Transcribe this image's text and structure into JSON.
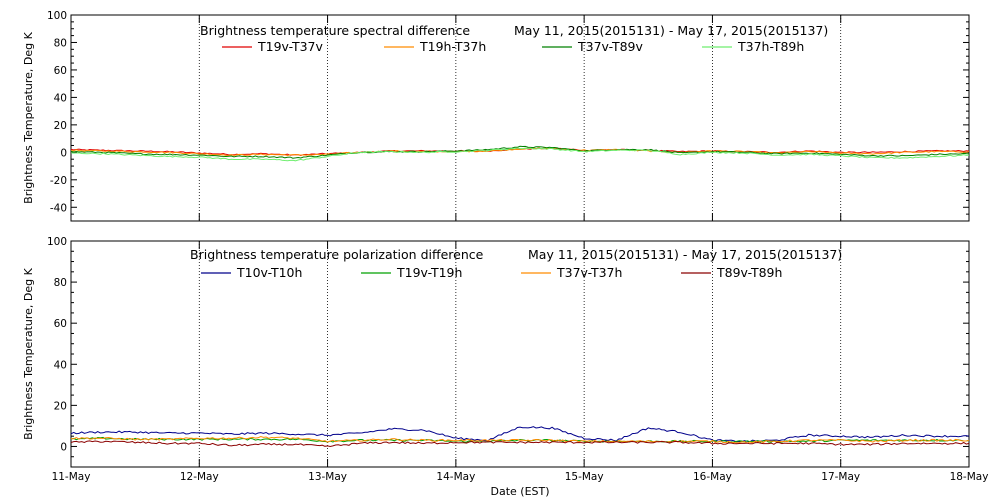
{
  "figure": {
    "xlabel": "Date (EST)",
    "x_tick_labels": [
      "11-May",
      "12-May",
      "13-May",
      "14-May",
      "15-May",
      "16-May",
      "17-May",
      "18-May"
    ]
  },
  "chart_data": [
    {
      "type": "line",
      "title": "Brightness temperature spectral difference",
      "date_range": "May 11, 2015(2015131) - May 17, 2015(2015137)",
      "ylabel": "Brightness Temperature, Deg K",
      "xlim": [
        "11-May",
        "18-May"
      ],
      "ylim": [
        -50,
        100
      ],
      "y_ticks": [
        -40,
        -20,
        0,
        20,
        40,
        60,
        80,
        100
      ],
      "grid": "vertical dotted lines at each day",
      "legend_placement": "top",
      "x_days": [
        0,
        0.25,
        0.5,
        0.75,
        1,
        1.25,
        1.5,
        1.75,
        2,
        2.25,
        2.5,
        2.75,
        3,
        3.25,
        3.5,
        3.75,
        4,
        4.25,
        4.5,
        4.75,
        5,
        5.25,
        5.5,
        5.75,
        6,
        6.25,
        6.5,
        6.75,
        7
      ],
      "series": [
        {
          "name": "T19v-T37v",
          "color": "#e00000",
          "values": [
            2,
            1.5,
            1,
            0.5,
            -0.5,
            -1.5,
            -1,
            -2,
            -1,
            0,
            1,
            1,
            1,
            1,
            2.5,
            3,
            1.5,
            2,
            1.5,
            0.5,
            1,
            0.5,
            0,
            1,
            0,
            0,
            0.5,
            1,
            1
          ]
        },
        {
          "name": "T19h-T37h",
          "color": "#ff8c00",
          "values": [
            1.5,
            1,
            0.5,
            0,
            -1,
            -2,
            -1.5,
            -2,
            -1.5,
            0,
            1,
            0.5,
            0.5,
            1,
            2.5,
            3,
            1.5,
            2,
            1,
            0,
            1,
            0.5,
            -0.5,
            0.5,
            -0.5,
            -1,
            0,
            0.5,
            0.5
          ]
        },
        {
          "name": "T37v-T89v",
          "color": "#008000",
          "values": [
            0.5,
            0,
            -1,
            -1.5,
            -2,
            -3,
            -3,
            -4,
            -2,
            0,
            0.5,
            0.5,
            1,
            2,
            4,
            3.5,
            1,
            2,
            2,
            -0.5,
            0.5,
            0,
            -1,
            -0.5,
            -1.5,
            -2.5,
            -2.5,
            -1.5,
            -1
          ]
        },
        {
          "name": "T37h-T89h",
          "color": "#6fee6f",
          "values": [
            -0.5,
            -1,
            -2,
            -3,
            -3.5,
            -5,
            -5,
            -6,
            -3,
            0,
            0.5,
            0,
            0.5,
            1.5,
            3,
            2.5,
            0.5,
            1.5,
            1.5,
            -1.5,
            0,
            -0.5,
            -2,
            -1.5,
            -2.5,
            -4,
            -4,
            -3,
            -2
          ]
        }
      ]
    },
    {
      "type": "line",
      "title": "Brightness temperature polarization difference",
      "date_range": "May 11, 2015(2015131) - May 17, 2015(2015137)",
      "ylabel": "Brightness Temperature, Deg K",
      "xlim": [
        "11-May",
        "18-May"
      ],
      "ylim": [
        -10,
        100
      ],
      "y_ticks": [
        0,
        20,
        40,
        60,
        80,
        100
      ],
      "grid": "vertical dotted lines at each day",
      "legend_placement": "top",
      "x_days": [
        0,
        0.25,
        0.5,
        0.75,
        1,
        1.25,
        1.5,
        1.75,
        2,
        2.25,
        2.5,
        2.75,
        3,
        3.25,
        3.5,
        3.75,
        4,
        4.25,
        4.5,
        4.75,
        5,
        5.25,
        5.5,
        5.75,
        6,
        6.25,
        6.5,
        6.75,
        7
      ],
      "series": [
        {
          "name": "T10v-T10h",
          "color": "#00008b",
          "values": [
            6.5,
            7,
            7,
            6.5,
            6.5,
            6,
            6.5,
            6,
            5.5,
            6.5,
            8.5,
            8,
            4,
            3,
            9.5,
            9,
            4,
            3,
            9,
            7,
            3,
            2.5,
            3,
            5.5,
            5,
            4.5,
            5.5,
            5,
            5
          ]
        },
        {
          "name": "T19v-T19h",
          "color": "#00a000",
          "values": [
            3.5,
            4,
            3.5,
            3.5,
            3.5,
            3.5,
            3.5,
            3.5,
            2.5,
            3,
            3,
            3,
            2.5,
            2.5,
            3,
            3,
            2.5,
            2.5,
            2.5,
            2.5,
            2.5,
            2.5,
            2.5,
            2.5,
            3,
            3,
            3,
            3,
            3
          ]
        },
        {
          "name": "T37v-T37h",
          "color": "#ff8c00",
          "values": [
            4,
            4,
            3.5,
            3.5,
            4,
            4,
            4.5,
            4,
            2.5,
            3,
            3.5,
            3,
            3,
            3,
            3,
            3,
            2.5,
            2.5,
            2.5,
            2.5,
            2.5,
            2,
            2.5,
            3,
            3,
            2.5,
            3,
            3,
            3
          ]
        },
        {
          "name": "T89v-T89h",
          "color": "#8b0000",
          "values": [
            2,
            2.5,
            2,
            1.5,
            1.5,
            0.5,
            1,
            1,
            0,
            1.5,
            2,
            1.5,
            2,
            2,
            2,
            2,
            2,
            2,
            2,
            2,
            1.5,
            1.5,
            1.5,
            1.5,
            1,
            1,
            1.5,
            1.5,
            1.5
          ]
        }
      ]
    }
  ]
}
